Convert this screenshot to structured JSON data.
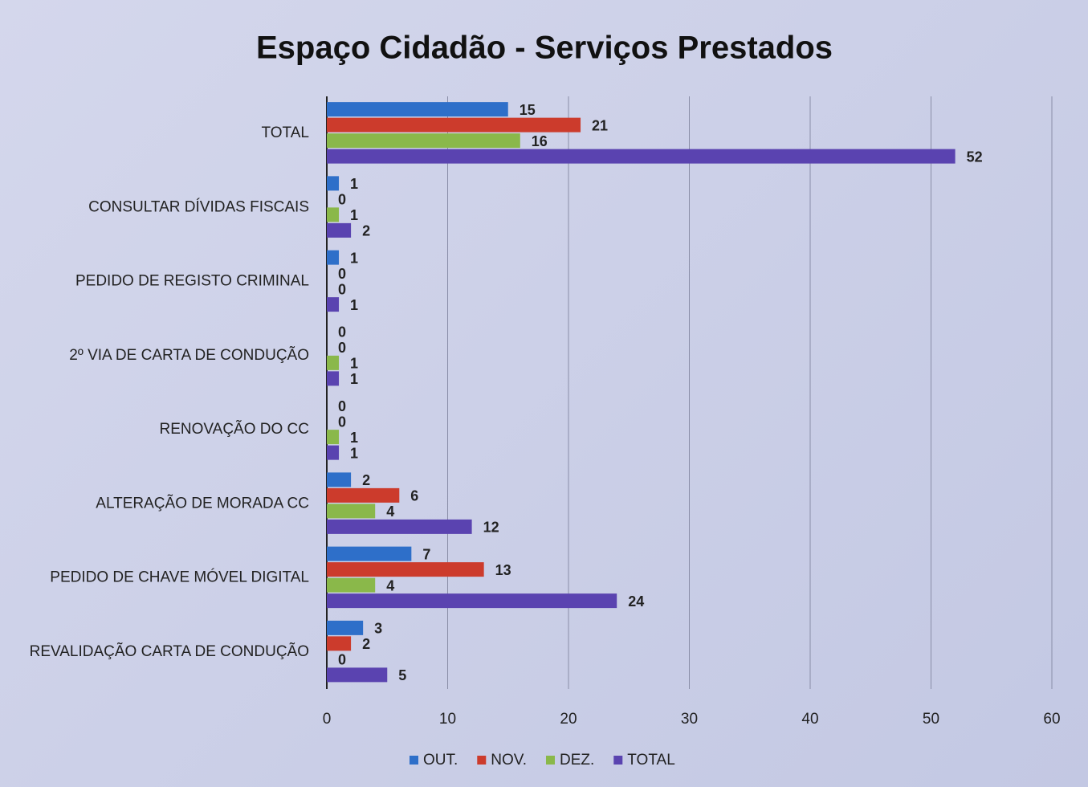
{
  "chart_data": {
    "type": "hbar",
    "title": "Espaço Cidadão - Serviços Prestados",
    "categories": [
      "TOTAL",
      "CONSULTAR DÍVIDAS FISCAIS",
      "PEDIDO DE REGISTO CRIMINAL",
      "2º VIA DE CARTA DE CONDUÇÃO",
      "RENOVAÇÃO DO CC",
      "ALTERAÇÃO DE MORADA CC",
      "PEDIDO DE CHAVE MÓVEL DIGITAL",
      "REVALIDAÇÃO CARTA DE CONDUÇÃO"
    ],
    "series": [
      {
        "name": "OUT.",
        "color": "#2e6fc9",
        "values": [
          15,
          1,
          1,
          0,
          0,
          2,
          7,
          3
        ]
      },
      {
        "name": "NOV.",
        "color": "#cc3b2c",
        "values": [
          21,
          0,
          0,
          0,
          0,
          6,
          13,
          2
        ]
      },
      {
        "name": "DEZ.",
        "color": "#8ab84a",
        "values": [
          16,
          1,
          0,
          1,
          1,
          4,
          4,
          0
        ]
      },
      {
        "name": "TOTAL",
        "color": "#5a43b0",
        "values": [
          52,
          2,
          1,
          1,
          1,
          12,
          24,
          5
        ]
      }
    ],
    "xlim": [
      0,
      60
    ],
    "xticks": [
      0,
      10,
      20,
      30,
      40,
      50,
      60
    ],
    "grid": true,
    "legend": "bottom"
  }
}
